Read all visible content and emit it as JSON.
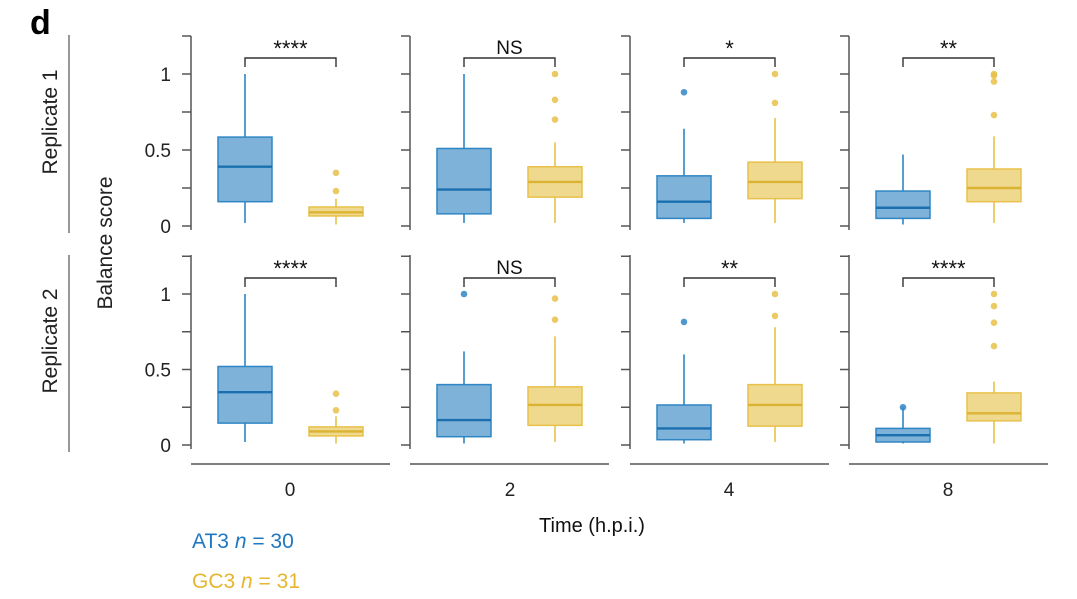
{
  "panel_letter": "d",
  "chart_data": {
    "type": "box",
    "title": "",
    "ylabel": "Balance score",
    "xlabel": "Time (h.p.i.)",
    "ylim": [
      0,
      1.25
    ],
    "yticks": [
      0,
      0.25,
      0.5,
      0.75,
      1,
      1.25
    ],
    "ytick_labels": {
      "0": "0",
      "0.5": "0.5",
      "1": "1"
    },
    "categories": [
      "0",
      "2",
      "4",
      "8"
    ],
    "rows": [
      "Replicate 1",
      "Replicate 2"
    ],
    "series": [
      {
        "name": "AT3",
        "n": "30",
        "color": "#2f86c4",
        "fill": "#7fb2d8",
        "median_color": "#1a6fb0"
      },
      {
        "name": "GC3",
        "n": "31",
        "color": "#e8c14a",
        "fill": "#eed98f",
        "median_color": "#dcb232"
      }
    ],
    "panels": [
      {
        "row": 0,
        "col": 0,
        "significance": "****",
        "boxes": [
          {
            "series": "AT3",
            "min": 0.02,
            "q1": 0.16,
            "median": 0.39,
            "q3": 0.585,
            "max": 1.0,
            "outliers": []
          },
          {
            "series": "GC3",
            "min": 0.01,
            "q1": 0.066,
            "median": 0.09,
            "q3": 0.125,
            "max": 0.18,
            "outliers": [
              0.35,
              0.23
            ]
          }
        ]
      },
      {
        "row": 0,
        "col": 1,
        "significance": "NS",
        "boxes": [
          {
            "series": "AT3",
            "min": 0.02,
            "q1": 0.08,
            "median": 0.24,
            "q3": 0.51,
            "max": 1.0,
            "outliers": []
          },
          {
            "series": "GC3",
            "min": 0.02,
            "q1": 0.19,
            "median": 0.29,
            "q3": 0.39,
            "max": 0.55,
            "outliers": [
              1.0,
              0.83,
              0.7
            ]
          }
        ]
      },
      {
        "row": 0,
        "col": 2,
        "significance": "*",
        "boxes": [
          {
            "series": "AT3",
            "min": 0.02,
            "q1": 0.05,
            "median": 0.16,
            "q3": 0.33,
            "max": 0.64,
            "outliers": [
              0.88
            ]
          },
          {
            "series": "GC3",
            "min": 0.02,
            "q1": 0.18,
            "median": 0.29,
            "q3": 0.42,
            "max": 0.71,
            "outliers": [
              1.0,
              0.81
            ]
          }
        ]
      },
      {
        "row": 0,
        "col": 3,
        "significance": "**",
        "boxes": [
          {
            "series": "AT3",
            "min": 0.01,
            "q1": 0.05,
            "median": 0.12,
            "q3": 0.23,
            "max": 0.47,
            "outliers": []
          },
          {
            "series": "GC3",
            "min": 0.02,
            "q1": 0.16,
            "median": 0.25,
            "q3": 0.375,
            "max": 0.59,
            "outliers": [
              1.0,
              0.99,
              0.95,
              0.73
            ]
          }
        ]
      },
      {
        "row": 1,
        "col": 0,
        "significance": "****",
        "boxes": [
          {
            "series": "AT3",
            "min": 0.02,
            "q1": 0.145,
            "median": 0.35,
            "q3": 0.52,
            "max": 1.0,
            "outliers": []
          },
          {
            "series": "GC3",
            "min": 0.01,
            "q1": 0.06,
            "median": 0.09,
            "q3": 0.12,
            "max": 0.19,
            "outliers": [
              0.34,
              0.23
            ]
          }
        ]
      },
      {
        "row": 1,
        "col": 1,
        "significance": "NS",
        "boxes": [
          {
            "series": "AT3",
            "min": 0.01,
            "q1": 0.055,
            "median": 0.165,
            "q3": 0.4,
            "max": 0.62,
            "outliers": [
              1.0
            ]
          },
          {
            "series": "GC3",
            "min": 0.02,
            "q1": 0.13,
            "median": 0.265,
            "q3": 0.385,
            "max": 0.72,
            "outliers": [
              0.97,
              0.83
            ]
          }
        ]
      },
      {
        "row": 1,
        "col": 2,
        "significance": "**",
        "boxes": [
          {
            "series": "AT3",
            "min": 0.01,
            "q1": 0.035,
            "median": 0.11,
            "q3": 0.265,
            "max": 0.6,
            "outliers": [
              0.815
            ]
          },
          {
            "series": "GC3",
            "min": 0.02,
            "q1": 0.125,
            "median": 0.265,
            "q3": 0.4,
            "max": 0.78,
            "outliers": [
              1.0,
              0.855
            ]
          }
        ]
      },
      {
        "row": 1,
        "col": 3,
        "significance": "****",
        "boxes": [
          {
            "series": "AT3",
            "min": 0.01,
            "q1": 0.02,
            "median": 0.065,
            "q3": 0.11,
            "max": 0.25,
            "outliers": [
              0.25
            ]
          },
          {
            "series": "GC3",
            "min": 0.01,
            "q1": 0.16,
            "median": 0.21,
            "q3": 0.345,
            "max": 0.42,
            "outliers": [
              1.0,
              0.92,
              0.81,
              0.655
            ]
          }
        ]
      }
    ],
    "legend": [
      {
        "label": "AT3",
        "n_label": "n",
        "eq": " = 30",
        "color": "#1f78c1"
      },
      {
        "label": "GC3",
        "n_label": "n",
        "eq": " = 31",
        "color": "#e6b62e"
      }
    ],
    "legend_position": "bottom-left"
  }
}
